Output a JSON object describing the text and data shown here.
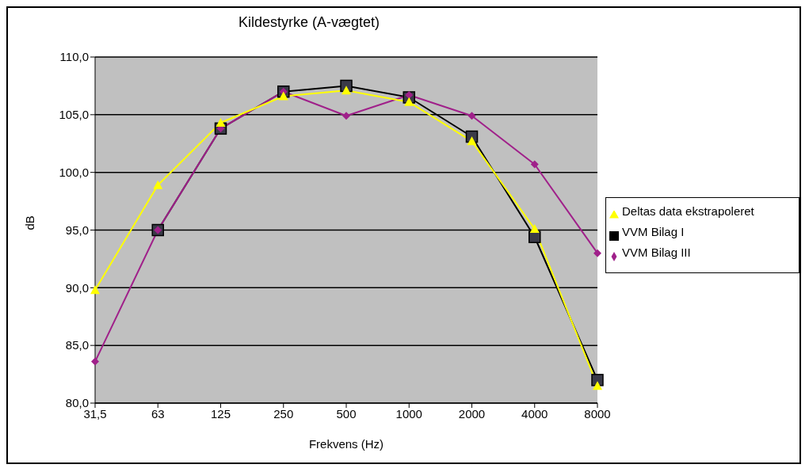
{
  "chart_data": {
    "type": "line",
    "title": "Kildestyrke (A-vægtet)",
    "xlabel": "Frekvens (Hz)",
    "ylabel": "dB",
    "categories": [
      "31,5",
      "63",
      "125",
      "250",
      "500",
      "1000",
      "2000",
      "4000",
      "8000"
    ],
    "series": [
      {
        "name": "VVM Bilag I",
        "color": "#000000",
        "marker": "square",
        "values": [
          null,
          95.0,
          103.8,
          107.0,
          107.5,
          106.5,
          103.1,
          94.4,
          82.0
        ]
      },
      {
        "name": "VVM Bilag III",
        "color": "#a0208a",
        "marker": "diamond",
        "values": [
          83.6,
          95.0,
          103.8,
          107.0,
          104.9,
          106.7,
          104.9,
          100.7,
          93.0
        ]
      },
      {
        "name": "Deltas data ekstrapoleret",
        "color": "#ffff00",
        "marker": "triangle",
        "values": [
          89.8,
          98.9,
          104.3,
          106.6,
          107.1,
          106.1,
          102.7,
          95.1,
          81.5
        ]
      }
    ],
    "ylim": [
      80,
      110
    ],
    "yticks": [
      {
        "value": 80,
        "label": "80,0"
      },
      {
        "value": 85,
        "label": "85,0"
      },
      {
        "value": 90,
        "label": "90,0"
      },
      {
        "value": 95,
        "label": "95,0"
      },
      {
        "value": 100,
        "label": "100,0"
      },
      {
        "value": 105,
        "label": "105,0"
      },
      {
        "value": 110,
        "label": "110,0"
      }
    ],
    "grid": "y",
    "legend": "right",
    "line_style": "solid"
  }
}
